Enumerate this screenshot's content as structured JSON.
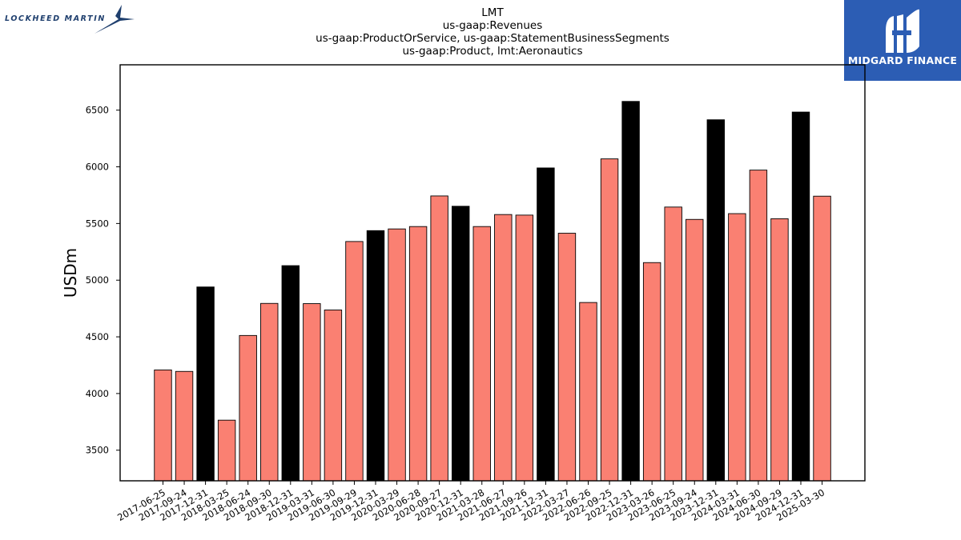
{
  "logos": {
    "left": "LOCKHEED MARTIN",
    "right": "MIDGARD FINANCE"
  },
  "colors": {
    "regular_bar": "#fa8072",
    "year_end_bar": "#000000",
    "logo_blue": "#2c5db4"
  },
  "chart_data": {
    "type": "bar",
    "title": [
      "LMT",
      "us-gaap:Revenues",
      "us-gaap:ProductOrService, us-gaap:StatementBusinessSegments",
      "us-gaap:Product, lmt:Aeronautics"
    ],
    "xlabel": "",
    "ylabel": "USDm",
    "ylim": [
      3230,
      6900
    ],
    "yticks": [
      3500,
      4000,
      4500,
      5000,
      5500,
      6000,
      6500
    ],
    "grid": false,
    "legend": "none",
    "categories": [
      "2017-06-25",
      "2017-09-24",
      "2017-12-31",
      "2018-03-25",
      "2018-06-24",
      "2018-09-30",
      "2018-12-31",
      "2019-03-31",
      "2019-06-30",
      "2019-09-29",
      "2019-12-31",
      "2020-03-29",
      "2020-06-28",
      "2020-09-27",
      "2020-12-31",
      "2021-03-28",
      "2021-06-27",
      "2021-09-26",
      "2021-12-31",
      "2022-03-27",
      "2022-06-26",
      "2022-09-25",
      "2022-12-31",
      "2023-03-26",
      "2023-06-25",
      "2023-09-24",
      "2023-12-31",
      "2024-03-31",
      "2024-06-30",
      "2024-09-29",
      "2024-12-31",
      "2025-03-30"
    ],
    "values": [
      4208,
      4195,
      4940,
      3765,
      4512,
      4795,
      5128,
      4793,
      4737,
      5341,
      5437,
      5452,
      5473,
      5743,
      5652,
      5473,
      5579,
      5574,
      5990,
      5414,
      4803,
      6070,
      6577,
      5155,
      5645,
      5536,
      6415,
      5587,
      5971,
      5542,
      6483,
      5741
    ],
    "year_end": [
      false,
      false,
      true,
      false,
      false,
      false,
      true,
      false,
      false,
      false,
      true,
      false,
      false,
      false,
      true,
      false,
      false,
      false,
      true,
      false,
      false,
      false,
      true,
      false,
      false,
      false,
      true,
      false,
      false,
      false,
      true,
      false
    ]
  }
}
